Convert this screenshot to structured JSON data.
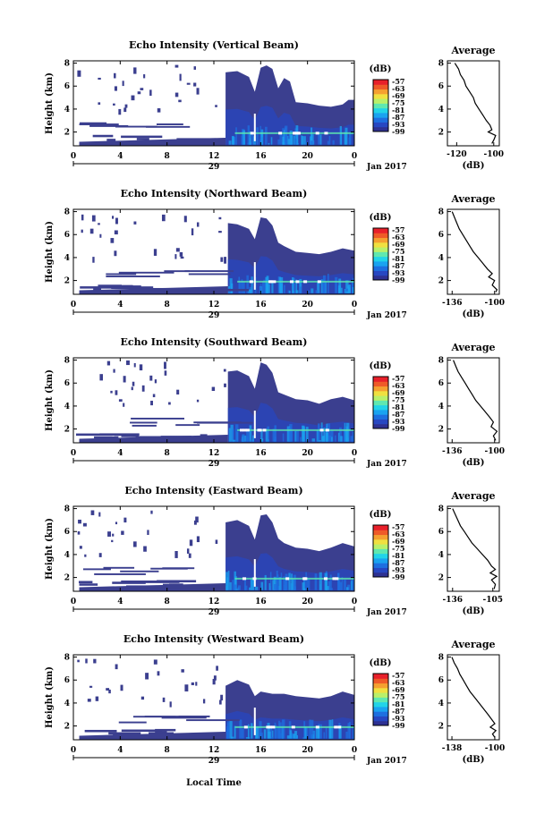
{
  "figure": {
    "date_label": "Jan 2017",
    "xlabel": "Local Time",
    "day_label": "29",
    "colorbar_unit": "(dB)",
    "colorbar_ticks": [
      "-57",
      "-63",
      "-69",
      "-75",
      "-81",
      "-87",
      "-93",
      "-99"
    ],
    "colorbar_colors": [
      "#2e3192",
      "#2747c2",
      "#1e6fe0",
      "#1aa3f0",
      "#22d4e8",
      "#5fe8b0",
      "#b9f06a",
      "#f0e040",
      "#f5a030",
      "#ef5a28",
      "#e8202a"
    ],
    "mask_color": "#3b3f8f"
  },
  "chart_data": [
    {
      "type": "heatmap",
      "title": "Echo Intensity (Vertical Beam)",
      "ylabel": "Height (km)",
      "x_ticks": [
        "0",
        "4",
        "8",
        "12",
        "16",
        "20",
        "0"
      ],
      "y_ticks": [
        "2",
        "4",
        "6",
        "8"
      ],
      "xlim": [
        0,
        24
      ],
      "ylim": [
        0.8,
        8.2
      ],
      "cloud_top_km": [
        [
          0,
          0
        ],
        [
          12.8,
          0
        ],
        [
          13,
          7.2
        ],
        [
          14,
          7.3
        ],
        [
          15,
          6.8
        ],
        [
          15.5,
          5.5
        ],
        [
          16,
          7.6
        ],
        [
          16.5,
          7.8
        ],
        [
          17,
          7.5
        ],
        [
          17.5,
          5.8
        ],
        [
          18,
          6.7
        ],
        [
          18.5,
          6.4
        ],
        [
          19,
          4.6
        ],
        [
          20,
          4.5
        ],
        [
          21,
          4.3
        ],
        [
          22,
          4.2
        ],
        [
          23,
          4.4
        ],
        [
          23.5,
          4.8
        ],
        [
          24,
          4.8
        ]
      ],
      "bright_band_km": 1.9,
      "profile": {
        "title": "Average",
        "xlabel": "(dB)",
        "xticks": [
          "-120",
          "-100"
        ],
        "xlim": [
          -125,
          -97
        ],
        "ylim": [
          0.8,
          8.2
        ],
        "points": [
          [
            -121,
            8
          ],
          [
            -119,
            7.5
          ],
          [
            -118,
            7
          ],
          [
            -116,
            6.5
          ],
          [
            -115,
            6
          ],
          [
            -113,
            5.5
          ],
          [
            -111,
            5
          ],
          [
            -110,
            4.5
          ],
          [
            -108,
            4
          ],
          [
            -106,
            3.5
          ],
          [
            -104,
            3
          ],
          [
            -102,
            2.6
          ],
          [
            -101,
            2.2
          ],
          [
            -103,
            2
          ],
          [
            -99,
            1.7
          ],
          [
            -100,
            1.3
          ],
          [
            -101,
            1
          ]
        ]
      }
    },
    {
      "type": "heatmap",
      "title": "Echo Intensity (Northward Beam)",
      "ylabel": "Height (km)",
      "x_ticks": [
        "0",
        "4",
        "8",
        "12",
        "16",
        "20",
        "0"
      ],
      "y_ticks": [
        "2",
        "4",
        "6",
        "8"
      ],
      "xlim": [
        0,
        24
      ],
      "ylim": [
        0.8,
        8.2
      ],
      "cloud_top_km": [
        [
          0,
          0
        ],
        [
          13,
          0
        ],
        [
          13.2,
          7.0
        ],
        [
          14,
          6.9
        ],
        [
          15,
          6.5
        ],
        [
          15.5,
          5.6
        ],
        [
          16,
          7.5
        ],
        [
          16.5,
          7.4
        ],
        [
          17,
          6.8
        ],
        [
          17.5,
          5.3
        ],
        [
          18,
          5.0
        ],
        [
          19,
          4.5
        ],
        [
          20,
          4.4
        ],
        [
          21,
          4.3
        ],
        [
          22,
          4.5
        ],
        [
          23,
          4.8
        ],
        [
          24,
          4.6
        ]
      ],
      "bright_band_km": 1.9,
      "profile": {
        "title": "Average",
        "xlabel": "(dB)",
        "xticks": [
          "-136",
          "-100"
        ],
        "xlim": [
          -140,
          -96
        ],
        "ylim": [
          0.8,
          8.2
        ],
        "points": [
          [
            -136,
            8
          ],
          [
            -134,
            7.5
          ],
          [
            -132,
            7
          ],
          [
            -130,
            6.5
          ],
          [
            -127,
            6
          ],
          [
            -124,
            5.5
          ],
          [
            -121,
            5
          ],
          [
            -118,
            4.5
          ],
          [
            -114,
            4
          ],
          [
            -110,
            3.5
          ],
          [
            -106,
            3
          ],
          [
            -102,
            2.6
          ],
          [
            -105,
            2.3
          ],
          [
            -100,
            2
          ],
          [
            -102,
            1.6
          ],
          [
            -98,
            1.2
          ],
          [
            -99,
            1
          ]
        ]
      }
    },
    {
      "type": "heatmap",
      "title": "Echo Intensity (Southward Beam)",
      "ylabel": "Height (km)",
      "x_ticks": [
        "0",
        "4",
        "8",
        "12",
        "16",
        "20",
        "0"
      ],
      "y_ticks": [
        "2",
        "4",
        "6",
        "8"
      ],
      "xlim": [
        0,
        24
      ],
      "ylim": [
        0.8,
        8.2
      ],
      "cloud_top_km": [
        [
          0,
          0
        ],
        [
          13,
          0
        ],
        [
          13.2,
          7.0
        ],
        [
          14,
          7.1
        ],
        [
          15,
          6.6
        ],
        [
          15.5,
          5.5
        ],
        [
          16,
          7.8
        ],
        [
          16.5,
          7.6
        ],
        [
          17,
          6.9
        ],
        [
          17.5,
          5.2
        ],
        [
          18,
          5.0
        ],
        [
          19,
          4.6
        ],
        [
          20,
          4.5
        ],
        [
          21,
          4.2
        ],
        [
          22,
          4.6
        ],
        [
          23,
          4.8
        ],
        [
          24,
          4.5
        ]
      ],
      "bright_band_km": 1.9,
      "profile": {
        "title": "Average",
        "xlabel": "(dB)",
        "xticks": [
          "-136",
          "-100"
        ],
        "xlim": [
          -140,
          -96
        ],
        "ylim": [
          0.8,
          8.2
        ],
        "points": [
          [
            -135,
            8
          ],
          [
            -133,
            7.5
          ],
          [
            -131,
            7
          ],
          [
            -128,
            6.5
          ],
          [
            -125,
            6
          ],
          [
            -122,
            5.5
          ],
          [
            -119,
            5
          ],
          [
            -116,
            4.5
          ],
          [
            -112,
            4
          ],
          [
            -108,
            3.5
          ],
          [
            -104,
            3
          ],
          [
            -101,
            2.6
          ],
          [
            -103,
            2.2
          ],
          [
            -98,
            1.8
          ],
          [
            -101,
            1.4
          ],
          [
            -99,
            1
          ]
        ]
      }
    },
    {
      "type": "heatmap",
      "title": "Echo Intensity (Eastward Beam)",
      "ylabel": "Height (km)",
      "x_ticks": [
        "0",
        "4",
        "8",
        "12",
        "16",
        "20",
        "0"
      ],
      "y_ticks": [
        "2",
        "4",
        "6",
        "8"
      ],
      "xlim": [
        0,
        24
      ],
      "ylim": [
        0.8,
        8.2
      ],
      "cloud_top_km": [
        [
          0,
          0
        ],
        [
          12.8,
          0
        ],
        [
          13,
          6.8
        ],
        [
          14,
          7.0
        ],
        [
          15,
          6.5
        ],
        [
          15.5,
          5.3
        ],
        [
          16,
          7.4
        ],
        [
          16.5,
          7.5
        ],
        [
          17,
          6.8
        ],
        [
          17.5,
          5.4
        ],
        [
          18,
          5.0
        ],
        [
          19,
          4.6
        ],
        [
          20,
          4.5
        ],
        [
          21,
          4.3
        ],
        [
          22,
          4.6
        ],
        [
          23,
          5.0
        ],
        [
          24,
          4.7
        ]
      ],
      "bright_band_km": 1.9,
      "profile": {
        "title": "Average",
        "xlabel": "(dB)",
        "xticks": [
          "-136",
          "-105"
        ],
        "xlim": [
          -140,
          -100
        ],
        "ylim": [
          0.8,
          8.2
        ],
        "points": [
          [
            -136,
            8
          ],
          [
            -134,
            7.5
          ],
          [
            -132,
            7
          ],
          [
            -130,
            6.5
          ],
          [
            -127,
            6
          ],
          [
            -124,
            5.5
          ],
          [
            -121,
            5
          ],
          [
            -117,
            4.5
          ],
          [
            -113,
            4
          ],
          [
            -109,
            3.5
          ],
          [
            -106,
            3
          ],
          [
            -103,
            2.7
          ],
          [
            -107,
            2.4
          ],
          [
            -102,
            2.1
          ],
          [
            -106,
            1.8
          ],
          [
            -103,
            1.4
          ],
          [
            -104,
            1
          ]
        ]
      }
    },
    {
      "type": "heatmap",
      "title": "Echo Intensity (Westward Beam)",
      "ylabel": "Height (km)",
      "x_ticks": [
        "0",
        "4",
        "8",
        "12",
        "16",
        "20",
        "0"
      ],
      "y_ticks": [
        "2",
        "4",
        "6",
        "8"
      ],
      "xlim": [
        0,
        24
      ],
      "ylim": [
        0.8,
        8.2
      ],
      "cloud_top_km": [
        [
          0,
          0
        ],
        [
          12.8,
          0
        ],
        [
          13,
          5.5
        ],
        [
          14,
          6.0
        ],
        [
          15,
          5.6
        ],
        [
          15.5,
          4.6
        ],
        [
          16,
          5.0
        ],
        [
          17,
          4.8
        ],
        [
          18,
          4.8
        ],
        [
          19,
          4.6
        ],
        [
          20,
          4.5
        ],
        [
          21,
          4.4
        ],
        [
          22,
          4.6
        ],
        [
          23,
          5.0
        ],
        [
          24,
          4.7
        ]
      ],
      "bright_band_km": 1.9,
      "profile": {
        "title": "Average",
        "xlabel": "(dB)",
        "xticks": [
          "-138",
          "-100"
        ],
        "xlim": [
          -142,
          -96
        ],
        "ylim": [
          0.8,
          8.2
        ],
        "points": [
          [
            -138,
            8
          ],
          [
            -136,
            7.5
          ],
          [
            -133,
            7
          ],
          [
            -131,
            6.5
          ],
          [
            -128,
            6
          ],
          [
            -125,
            5.5
          ],
          [
            -122,
            5
          ],
          [
            -118,
            4.5
          ],
          [
            -114,
            4
          ],
          [
            -110,
            3.5
          ],
          [
            -106,
            3
          ],
          [
            -103,
            2.6
          ],
          [
            -100,
            2.2
          ],
          [
            -104,
            1.9
          ],
          [
            -99,
            1.6
          ],
          [
            -102,
            1.3
          ],
          [
            -100,
            1
          ]
        ]
      }
    }
  ]
}
